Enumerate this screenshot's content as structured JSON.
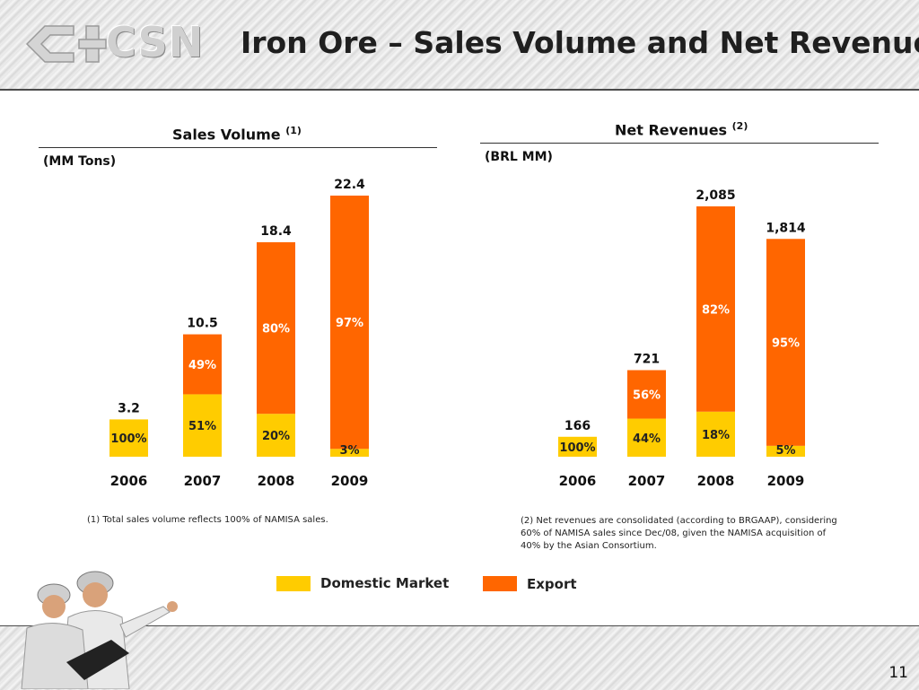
{
  "slide": {
    "logo_text": "CSN",
    "title": "Iron Ore – Sales Volume and Net Revenues",
    "page_number": "11"
  },
  "colors": {
    "domestic": "#ffcc00",
    "export": "#ff6600",
    "label_white": "#ffffff",
    "label_dark": "#222222"
  },
  "left_panel": {
    "title": "Sales Volume ",
    "title_sup": "(1)",
    "unit": "(MM Tons)",
    "footnote": "(1) Total sales volume reflects 100% of NAMISA sales."
  },
  "right_panel": {
    "title": "Net Revenues ",
    "title_sup": "(2)",
    "unit": "(BRL MM)",
    "footnote_lines": [
      "(2) Net revenues are consolidated (according to BRGAAP), considering",
      "60% of NAMISA sales since Dec/08, given the NAMISA acquisition of",
      "40% by the Asian Consortium."
    ]
  },
  "legend": {
    "domestic": "Domestic Market",
    "export": "Export"
  },
  "chart_data": [
    {
      "type": "bar",
      "title": "Sales Volume",
      "unit": "(MM Tons)",
      "categories": [
        "2006",
        "2007",
        "2008",
        "2009"
      ],
      "totals": [
        3.2,
        10.5,
        18.4,
        22.4
      ],
      "total_labels": [
        "3.2",
        "10.5",
        "18.4",
        "22.4"
      ],
      "series": [
        {
          "name": "Domestic Market",
          "share_pct": [
            100,
            51,
            20,
            3
          ],
          "labels": [
            "100%",
            "51%",
            "20%",
            "3%"
          ]
        },
        {
          "name": "Export",
          "share_pct": [
            0,
            49,
            80,
            97
          ],
          "labels": [
            "",
            "49%",
            "80%",
            "97%"
          ]
        }
      ]
    },
    {
      "type": "bar",
      "title": "Net Revenues",
      "unit": "(BRL MM)",
      "categories": [
        "2006",
        "2007",
        "2008",
        "2009"
      ],
      "totals": [
        166,
        721,
        2085,
        1814
      ],
      "total_labels": [
        "166",
        "721",
        "2,085",
        "1,814"
      ],
      "series": [
        {
          "name": "Domestic Market",
          "share_pct": [
            100,
            44,
            18,
            5
          ],
          "labels": [
            "100%",
            "44%",
            "18%",
            "5%"
          ]
        },
        {
          "name": "Export",
          "share_pct": [
            0,
            56,
            82,
            95
          ],
          "labels": [
            "",
            "56%",
            "82%",
            "95%"
          ]
        }
      ]
    }
  ]
}
